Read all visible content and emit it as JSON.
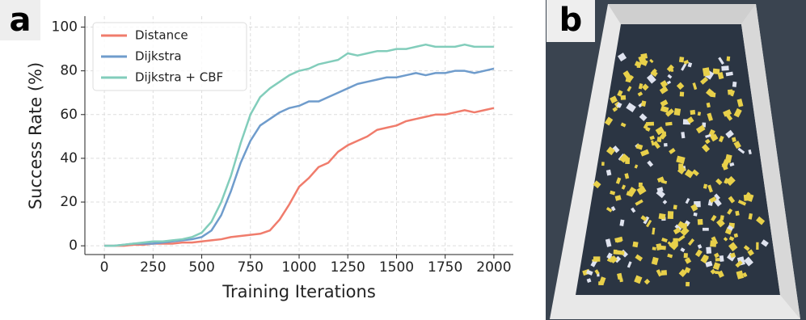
{
  "panel_labels": [
    "a",
    "b"
  ],
  "chart_data": {
    "type": "line",
    "xlabel": "Training Iterations",
    "ylabel": "Success Rate (%)",
    "x": [
      0,
      50,
      100,
      150,
      200,
      250,
      300,
      350,
      400,
      450,
      500,
      550,
      600,
      650,
      700,
      750,
      800,
      850,
      900,
      950,
      1000,
      1050,
      1100,
      1150,
      1200,
      1250,
      1300,
      1350,
      1400,
      1450,
      1500,
      1550,
      1600,
      1650,
      1700,
      1750,
      1800,
      1850,
      1900,
      1950,
      2000
    ],
    "series": [
      {
        "name": "Distance",
        "color": "#f07c6c",
        "values": [
          0,
          0,
          0,
          0.5,
          0.5,
          1,
          1,
          1,
          1.5,
          1.5,
          2,
          2.5,
          3,
          4,
          4.5,
          5,
          5.5,
          7,
          12,
          19,
          27,
          31,
          36,
          38,
          43,
          46,
          48,
          50,
          53,
          54,
          55,
          57,
          58,
          59,
          60,
          60,
          61,
          62,
          61,
          62,
          63
        ]
      },
      {
        "name": "Dijkstra",
        "color": "#6f9ccc",
        "values": [
          0,
          0,
          0.5,
          1,
          1,
          1,
          1.5,
          2,
          2.5,
          3,
          4,
          7,
          14,
          25,
          38,
          48,
          55,
          58,
          61,
          63,
          64,
          66,
          66,
          68,
          70,
          72,
          74,
          75,
          76,
          77,
          77,
          78,
          79,
          78,
          79,
          79,
          80,
          80,
          79,
          80,
          81
        ]
      },
      {
        "name": "Dijkstra + CBF",
        "color": "#82cdbb",
        "values": [
          0,
          0,
          0.5,
          1,
          1.5,
          2,
          2,
          2.5,
          3,
          4,
          6,
          11,
          20,
          32,
          47,
          60,
          68,
          72,
          75,
          78,
          80,
          81,
          83,
          84,
          85,
          88,
          87,
          88,
          89,
          89,
          90,
          90,
          91,
          92,
          91,
          91,
          91,
          92,
          91,
          91,
          91
        ]
      }
    ],
    "xlim": [
      -100,
      2100
    ],
    "ylim": [
      -4,
      105
    ],
    "xticks": [
      0,
      250,
      500,
      750,
      1000,
      1250,
      1500,
      1750,
      2000
    ],
    "yticks": [
      0,
      20,
      40,
      60,
      80,
      100
    ],
    "grid": true,
    "legend": "upper-left"
  }
}
